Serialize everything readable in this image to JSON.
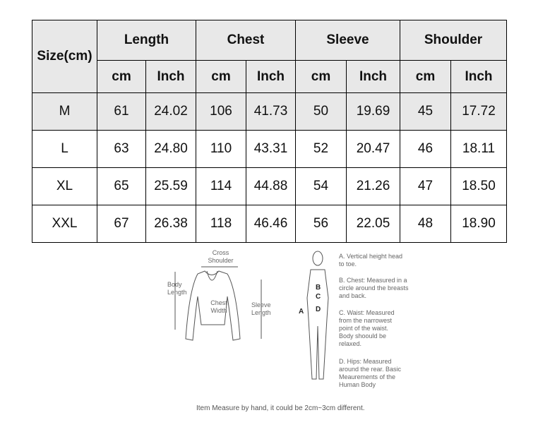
{
  "table": {
    "size_header": "Size(cm)",
    "groups": [
      "Length",
      "Chest",
      "Sleeve",
      "Shoulder"
    ],
    "units": [
      "cm",
      "Inch",
      "cm",
      "Inch",
      "cm",
      "Inch",
      "cm",
      "Inch"
    ],
    "rows": [
      [
        "M",
        "61",
        "24.02",
        "106",
        "41.73",
        "50",
        "19.69",
        "45",
        "17.72"
      ],
      [
        "L",
        "63",
        "24.80",
        "110",
        "43.31",
        "52",
        "20.47",
        "46",
        "18.11"
      ],
      [
        "XL",
        "65",
        "25.59",
        "114",
        "44.88",
        "54",
        "21.26",
        "47",
        "18.50"
      ],
      [
        "XXL",
        "67",
        "26.38",
        "118",
        "46.46",
        "56",
        "22.05",
        "48",
        "18.90"
      ]
    ]
  },
  "diagram": {
    "cross_shoulder": "Cross Shoulder",
    "body_length": "Body Length",
    "chest_width": "Chest Width",
    "sleeve_length": "Sleeve Length",
    "letters": [
      "A",
      "B",
      "C",
      "D"
    ],
    "notes": [
      "A. Vertical height head to toe.",
      "B. Chest: Measured in a circle around the breasts and back.",
      "C. Waist: Measured from the narrowest point of the waist. Body shoould be relaxed.",
      "D. Hips: Measured around the rear. Basic Meaurements of the Human Body"
    ],
    "footer": "Item Measure by hand, it could be 2cm~3cm different."
  }
}
